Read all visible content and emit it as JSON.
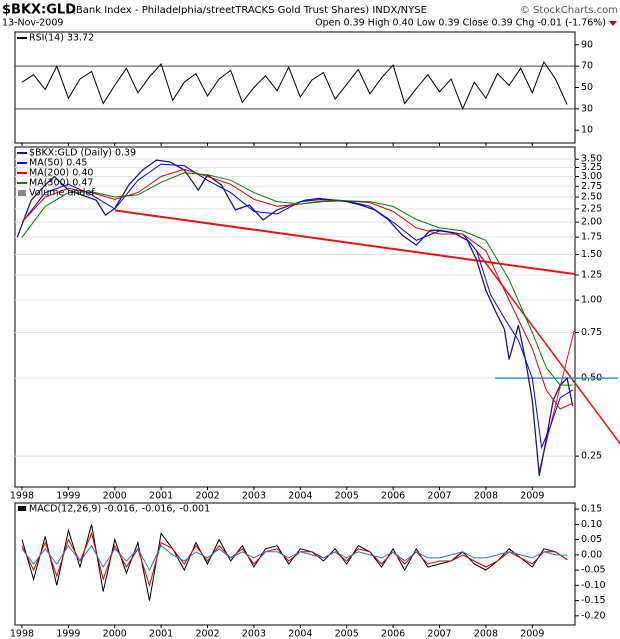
{
  "header": {
    "symbol": "$BKX:GLD",
    "title": "(Bank Index - Philadelphia/streetTRACKS Gold Trust Shares) INDX/NYSE",
    "source": "© StockCharts.com",
    "date": "13-Nov-2009",
    "quote": "Open 0.39 High 0.40 Low 0.39 Close 0.39 Chg -0.01 (-1.76%)"
  },
  "chart_data": [
    {
      "type": "line",
      "ylim": [
        -2,
        102
      ],
      "yticks": [
        90,
        70,
        50,
        30,
        10
      ],
      "reference_lines": [
        70,
        30
      ],
      "xlim": [
        1997.85,
        2009.92
      ],
      "xticks": [
        1998,
        1999,
        2000,
        2001,
        2002,
        2003,
        2004,
        2005,
        2006,
        2007,
        2008,
        2009
      ],
      "show_xlabels": false,
      "series": [
        {
          "name": "RSI(14) 33.72",
          "color": "#000000",
          "x": [
            1998.0,
            1998.25,
            1998.5,
            1998.75,
            1999.0,
            1999.25,
            1999.5,
            1999.75,
            2000.0,
            2000.25,
            2000.5,
            2000.75,
            2001.0,
            2001.25,
            2001.5,
            2001.75,
            2002.0,
            2002.25,
            2002.5,
            2002.75,
            2003.0,
            2003.25,
            2003.5,
            2003.75,
            2004.0,
            2004.25,
            2004.5,
            2004.75,
            2005.0,
            2005.25,
            2005.5,
            2005.75,
            2006.0,
            2006.25,
            2006.5,
            2006.75,
            2007.0,
            2007.25,
            2007.5,
            2007.75,
            2008.0,
            2008.25,
            2008.5,
            2008.75,
            2009.0,
            2009.25,
            2009.5,
            2009.75
          ],
          "values": [
            55,
            62,
            48,
            70,
            40,
            58,
            65,
            35,
            52,
            68,
            45,
            60,
            72,
            38,
            55,
            63,
            42,
            58,
            66,
            36,
            50,
            61,
            47,
            69,
            41,
            57,
            64,
            39,
            53,
            67,
            44,
            59,
            71,
            35,
            49,
            62,
            46,
            58,
            30,
            55,
            40,
            63,
            52,
            68,
            45,
            74,
            58,
            34
          ]
        }
      ]
    },
    {
      "type": "line",
      "log": true,
      "grid": true,
      "ylim": [
        0.19,
        3.9
      ],
      "yticks": [
        {
          "value": 3.5,
          "label": "3.50"
        },
        3.25,
        {
          "value": 3,
          "label": "3.00"
        },
        2.75,
        {
          "value": 2.5,
          "label": "2.50"
        },
        2.25,
        {
          "value": 2,
          "label": "2.00"
        },
        1.75,
        {
          "value": 1.5,
          "label": "1.50"
        },
        1.25,
        {
          "value": 1,
          "label": "1.00"
        },
        0.75,
        {
          "value": 0.5,
          "label": "0.50"
        },
        0.25
      ],
      "xlim": [
        1997.85,
        2009.92
      ],
      "xticks": [
        1998,
        1999,
        2000,
        2001,
        2002,
        2003,
        2004,
        2005,
        2006,
        2007,
        2008,
        2009
      ],
      "show_xlabels": true,
      "series": [
        {
          "name": "$BKX:GLD (Daily) 0.39",
          "color": "#1c1c70",
          "x": [
            1997.9,
            1998.2,
            1998.5,
            1998.7,
            1999.0,
            1999.3,
            1999.6,
            1999.8,
            2000.0,
            2000.3,
            2000.6,
            2000.9,
            2001.2,
            2001.5,
            2001.8,
            2002.0,
            2002.3,
            2002.6,
            2002.9,
            2003.2,
            2003.5,
            2003.8,
            2004.1,
            2004.4,
            2004.7,
            2005.0,
            2005.3,
            2005.6,
            2005.9,
            2006.2,
            2006.5,
            2006.8,
            2007.0,
            2007.3,
            2007.6,
            2007.8,
            2008.0,
            2008.2,
            2008.4,
            2008.5,
            2008.7,
            2008.85,
            2009.0,
            2009.15,
            2009.3,
            2009.45,
            2009.6,
            2009.75,
            2009.87
          ],
          "values": [
            1.75,
            2.43,
            2.78,
            3.0,
            2.66,
            2.54,
            2.43,
            2.13,
            2.26,
            2.78,
            3.18,
            3.47,
            3.41,
            3.18,
            2.66,
            3.04,
            2.78,
            2.23,
            2.33,
            2.04,
            2.23,
            2.33,
            2.43,
            2.47,
            2.43,
            2.4,
            2.33,
            2.23,
            2.04,
            1.78,
            1.63,
            1.86,
            1.86,
            1.82,
            1.7,
            1.43,
            1.09,
            0.91,
            0.77,
            0.59,
            0.8,
            0.59,
            0.41,
            0.21,
            0.29,
            0.41,
            0.47,
            0.5,
            0.39
          ]
        },
        {
          "name": "MA(50) 0.45",
          "color": "#0000ff",
          "x": [
            1998.1,
            1998.5,
            1999.0,
            1999.5,
            2000.0,
            2000.5,
            2001.0,
            2001.5,
            2002.0,
            2002.5,
            2003.0,
            2003.5,
            2004.0,
            2004.5,
            2005.0,
            2005.5,
            2006.0,
            2006.5,
            2007.0,
            2007.5,
            2007.8,
            2008.1,
            2008.4,
            2008.7,
            2009.0,
            2009.2,
            2009.4,
            2009.6,
            2009.87
          ],
          "values": [
            2.1,
            2.6,
            2.8,
            2.55,
            2.25,
            2.9,
            3.35,
            3.3,
            2.9,
            2.6,
            2.2,
            2.15,
            2.4,
            2.45,
            2.42,
            2.3,
            2.0,
            1.7,
            1.85,
            1.8,
            1.55,
            1.05,
            0.85,
            0.7,
            0.5,
            0.27,
            0.33,
            0.42,
            0.45
          ]
        },
        {
          "name": "MA(200) 0.40",
          "color": "#dd0000",
          "x": [
            1998.0,
            1998.5,
            1999.0,
            1999.5,
            2000.0,
            2000.5,
            2001.0,
            2001.5,
            2002.0,
            2002.5,
            2003.0,
            2003.5,
            2004.0,
            2004.5,
            2005.0,
            2005.5,
            2006.0,
            2006.5,
            2007.0,
            2007.5,
            2008.0,
            2008.5,
            2009.0,
            2009.3,
            2009.6,
            2009.87
          ],
          "values": [
            2.0,
            2.5,
            2.7,
            2.6,
            2.45,
            2.6,
            3.0,
            3.2,
            3.0,
            2.8,
            2.45,
            2.3,
            2.35,
            2.42,
            2.42,
            2.38,
            2.2,
            1.9,
            1.8,
            1.8,
            1.55,
            1.0,
            0.65,
            0.45,
            0.38,
            0.4
          ]
        },
        {
          "name": "MA(300) 0.47",
          "color": "#008000",
          "x": [
            1998.0,
            1998.5,
            1999.0,
            1999.5,
            2000.0,
            2000.5,
            2001.0,
            2001.5,
            2002.0,
            2002.5,
            2003.0,
            2003.5,
            2004.0,
            2004.5,
            2005.0,
            2005.5,
            2006.0,
            2006.5,
            2007.0,
            2007.5,
            2008.0,
            2008.5,
            2009.0,
            2009.3,
            2009.6,
            2009.87
          ],
          "values": [
            1.75,
            2.3,
            2.6,
            2.62,
            2.5,
            2.55,
            2.85,
            3.1,
            3.05,
            2.9,
            2.6,
            2.4,
            2.35,
            2.4,
            2.42,
            2.4,
            2.3,
            2.05,
            1.9,
            1.85,
            1.7,
            1.2,
            0.75,
            0.55,
            0.47,
            0.47
          ]
        }
      ],
      "volume_label": "Volume undef",
      "annotation_lines": [
        {
          "color": "#ee1111",
          "width": 2,
          "x": [
            2000.0,
            2009.92
          ],
          "values": [
            2.22,
            1.26
          ]
        },
        {
          "color": "#ee1111",
          "width": 1.5,
          "x": [
            2007.8,
            2010.89
          ],
          "values": [
            1.55,
            0.28
          ]
        },
        {
          "color": "#ee1111",
          "width": 1,
          "x": [
            2009.15,
            2009.9
          ],
          "values": [
            0.22,
            0.76
          ]
        },
        {
          "color": "#3399cc",
          "width": 1.5,
          "x": [
            2008.2,
            2010.85
          ],
          "values": [
            0.5,
            0.5
          ]
        }
      ]
    },
    {
      "type": "line",
      "ylim": [
        -0.23,
        0.17
      ],
      "yticks": [
        0.15,
        {
          "value": 0.1,
          "label": "0.10"
        },
        0.05,
        {
          "value": 0,
          "label": "0.00"
        },
        -0.05,
        {
          "value": -0.1,
          "label": "-0.10"
        },
        -0.15,
        {
          "value": -0.2,
          "label": "-0.20"
        }
      ],
      "xlim": [
        1997.85,
        2009.92
      ],
      "xticks": [
        1998,
        1999,
        2000,
        2001,
        2002,
        2003,
        2004,
        2005,
        2006,
        2007,
        2008,
        2009
      ],
      "show_xlabels": true,
      "series": [
        {
          "name": "MACD(12,26,9) -0.016,",
          "color": "#000000",
          "x": [
            1998.0,
            1998.25,
            1998.5,
            1998.75,
            1999.0,
            1999.25,
            1999.5,
            1999.75,
            2000.0,
            2000.25,
            2000.5,
            2000.75,
            2001.0,
            2001.25,
            2001.5,
            2001.75,
            2002.0,
            2002.25,
            2002.5,
            2002.75,
            2003.0,
            2003.25,
            2003.5,
            2003.75,
            2004.0,
            2004.25,
            2004.5,
            2004.75,
            2005.0,
            2005.25,
            2005.5,
            2005.75,
            2006.0,
            2006.25,
            2006.5,
            2006.75,
            2007.0,
            2007.25,
            2007.5,
            2007.75,
            2008.0,
            2008.25,
            2008.5,
            2008.75,
            2009.0,
            2009.25,
            2009.5,
            2009.75
          ],
          "values": [
            0.05,
            -0.08,
            0.06,
            -0.1,
            0.08,
            -0.04,
            0.1,
            -0.12,
            0.05,
            -0.06,
            0.04,
            -0.15,
            0.07,
            0.02,
            -0.05,
            0.04,
            -0.03,
            0.05,
            -0.02,
            0.03,
            -0.04,
            0.02,
            0.03,
            -0.03,
            0.02,
            0.01,
            -0.02,
            0.02,
            -0.03,
            0.03,
            0.01,
            -0.04,
            0.02,
            -0.05,
            0.02,
            -0.04,
            -0.03,
            -0.02,
            0.01,
            -0.03,
            -0.05,
            -0.02,
            0.02,
            -0.01,
            -0.04,
            0.02,
            0.01,
            -0.016
          ]
        },
        {
          "name": "-0.016,",
          "color": "#dd0000",
          "x": [
            1998.0,
            1998.25,
            1998.5,
            1998.75,
            1999.0,
            1999.25,
            1999.5,
            1999.75,
            2000.0,
            2000.25,
            2000.5,
            2000.75,
            2001.0,
            2001.25,
            2001.5,
            2001.75,
            2002.0,
            2002.25,
            2002.5,
            2002.75,
            2003.0,
            2003.25,
            2003.5,
            2003.75,
            2004.0,
            2004.25,
            2004.5,
            2004.75,
            2005.0,
            2005.25,
            2005.5,
            2005.75,
            2006.0,
            2006.25,
            2006.5,
            2006.75,
            2007.0,
            2007.25,
            2007.5,
            2007.75,
            2008.0,
            2008.25,
            2008.5,
            2008.75,
            2009.0,
            2009.25,
            2009.5,
            2009.75
          ],
          "values": [
            0.03,
            -0.05,
            0.04,
            -0.07,
            0.05,
            -0.02,
            0.07,
            -0.08,
            0.03,
            -0.04,
            0.02,
            -0.1,
            0.04,
            0.02,
            -0.03,
            0.03,
            -0.02,
            0.03,
            -0.01,
            0.02,
            -0.03,
            0.01,
            0.02,
            -0.02,
            0.01,
            0.01,
            -0.01,
            0.01,
            -0.02,
            0.02,
            0.01,
            -0.03,
            0.01,
            -0.03,
            0.01,
            -0.03,
            -0.02,
            -0.02,
            0.0,
            -0.02,
            -0.04,
            -0.02,
            0.01,
            -0.01,
            -0.03,
            0.01,
            0.01,
            -0.016
          ]
        },
        {
          "name": "-0.001",
          "color": "#3377bb",
          "x": [
            1998.0,
            1998.25,
            1998.5,
            1998.75,
            1999.0,
            1999.25,
            1999.5,
            1999.75,
            2000.0,
            2000.25,
            2000.5,
            2000.75,
            2001.0,
            2001.25,
            2001.5,
            2001.75,
            2002.0,
            2002.25,
            2002.5,
            2002.75,
            2003.0,
            2003.25,
            2003.5,
            2003.75,
            2004.0,
            2004.25,
            2004.5,
            2004.75,
            2005.0,
            2005.25,
            2005.5,
            2005.75,
            2006.0,
            2006.25,
            2006.5,
            2006.75,
            2007.0,
            2007.25,
            2007.5,
            2007.75,
            2008.0,
            2008.25,
            2008.5,
            2008.75,
            2009.0,
            2009.25,
            2009.5,
            2009.75
          ],
          "values": [
            0.02,
            -0.03,
            0.02,
            -0.03,
            0.03,
            -0.02,
            0.03,
            -0.04,
            0.02,
            -0.02,
            0.02,
            -0.05,
            0.03,
            0.0,
            -0.02,
            0.01,
            -0.01,
            0.02,
            -0.01,
            0.01,
            -0.01,
            0.01,
            0.01,
            -0.01,
            0.01,
            0.0,
            -0.01,
            0.01,
            -0.01,
            0.01,
            0.0,
            -0.01,
            0.01,
            -0.02,
            0.01,
            -0.01,
            -0.01,
            0.0,
            0.01,
            -0.01,
            -0.01,
            0.0,
            0.01,
            0.0,
            -0.01,
            0.01,
            0.0,
            -0.001
          ]
        }
      ]
    }
  ]
}
